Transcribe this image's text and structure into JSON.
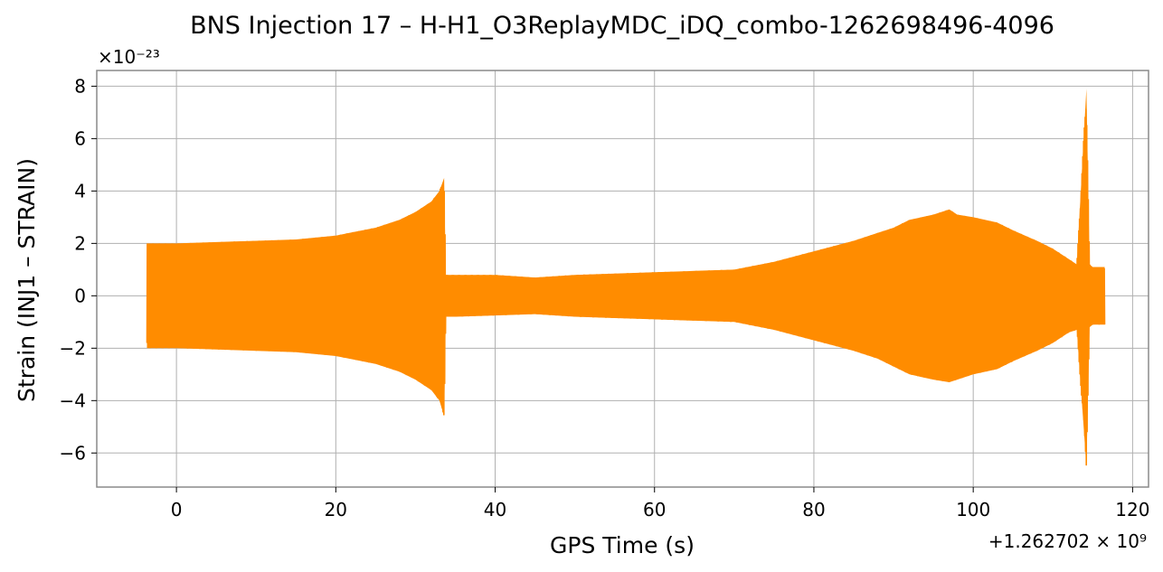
{
  "chart_data": {
    "type": "line",
    "title": "BNS Injection 17 – H-H1_O3ReplayMDC_iDQ_combo-1262698496-4096",
    "xlabel": "GPS Time (s)",
    "ylabel": "Strain (INJ1 – STRAIN)",
    "x_offset_label": "+1.262702 × 10⁹",
    "y_scale_label": "×10⁻²³",
    "xlim": [
      -10,
      122
    ],
    "ylim": [
      -7.3,
      8.6
    ],
    "x_ticks": [
      0,
      20,
      40,
      60,
      80,
      100,
      120
    ],
    "x_tick_labels": [
      "0",
      "20",
      "40",
      "60",
      "80",
      "100",
      "120"
    ],
    "y_ticks": [
      -6,
      -4,
      -2,
      0,
      2,
      4,
      6,
      8
    ],
    "y_tick_labels": [
      "−6",
      "−4",
      "−2",
      "0",
      "2",
      "4",
      "6",
      "8"
    ],
    "grid": true,
    "color": "#ff8c00",
    "series": [
      {
        "name": "",
        "envelope": {
          "x": [
            -3.7,
            0,
            5,
            10,
            15,
            20,
            25,
            28,
            30,
            32,
            33,
            33.6,
            33.8,
            35,
            40,
            45,
            50,
            55,
            60,
            65,
            70,
            75,
            80,
            85,
            88,
            90,
            92,
            95,
            97,
            98,
            100,
            103,
            105,
            108,
            110,
            112,
            113,
            114.2,
            114.6,
            115,
            116.5
          ],
          "upper": [
            2.0,
            2.0,
            2.05,
            2.1,
            2.15,
            2.3,
            2.6,
            2.9,
            3.2,
            3.6,
            4.0,
            4.5,
            0.8,
            0.8,
            0.8,
            0.7,
            0.8,
            0.85,
            0.9,
            0.95,
            1.0,
            1.3,
            1.7,
            2.1,
            2.4,
            2.6,
            2.9,
            3.1,
            3.3,
            3.1,
            3.0,
            2.8,
            2.5,
            2.1,
            1.8,
            1.4,
            1.2,
            7.9,
            1.2,
            1.1,
            1.1
          ],
          "lower": [
            -2.0,
            -2.0,
            -2.05,
            -2.1,
            -2.15,
            -2.3,
            -2.6,
            -2.9,
            -3.2,
            -3.6,
            -4.0,
            -4.6,
            -0.8,
            -0.8,
            -0.75,
            -0.7,
            -0.8,
            -0.85,
            -0.9,
            -0.95,
            -1.0,
            -1.3,
            -1.7,
            -2.1,
            -2.4,
            -2.7,
            -3.0,
            -3.2,
            -3.3,
            -3.2,
            -3.0,
            -2.8,
            -2.5,
            -2.1,
            -1.8,
            -1.4,
            -1.3,
            -6.5,
            -1.2,
            -1.1,
            -1.1
          ]
        }
      }
    ]
  }
}
